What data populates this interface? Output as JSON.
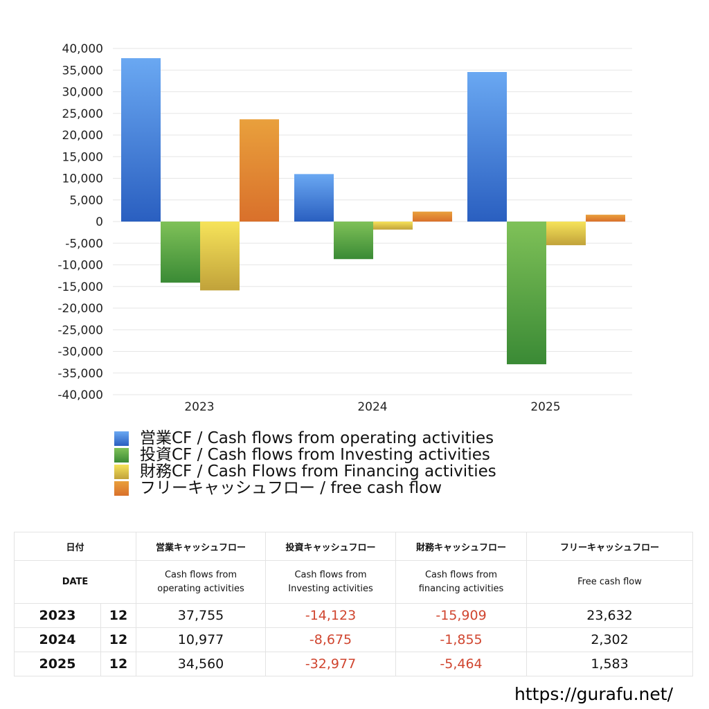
{
  "chart_data": {
    "type": "bar",
    "categories": [
      "2023",
      "2024",
      "2025"
    ],
    "ylim": [
      -40000,
      40000
    ],
    "yticks": [
      40000,
      35000,
      30000,
      25000,
      20000,
      15000,
      10000,
      5000,
      0,
      -5000,
      -10000,
      -15000,
      -20000,
      -25000,
      -30000,
      -35000,
      -40000
    ],
    "ytick_labels": [
      "40,000",
      "35,000",
      "30,000",
      "25,000",
      "20,000",
      "15,000",
      "10,000",
      "5,000",
      "0",
      "-5,000",
      "-10,000",
      "-15,000",
      "-20,000",
      "-25,000",
      "-30,000",
      "-35,000",
      "-40,000"
    ],
    "grid": true,
    "legend_position": "bottom",
    "series": [
      {
        "name": "営業CF / Cash flows from operating activities",
        "values": [
          37755,
          10977,
          34560
        ],
        "color_top": "#6aa8f2",
        "color_bottom": "#2a5fc0"
      },
      {
        "name": "投資CF / Cash flows from Investing activities",
        "values": [
          -14123,
          -8675,
          -32977
        ],
        "color_top": "#7fc158",
        "color_bottom": "#3a8a35"
      },
      {
        "name": "財務CF / Cash Flows from Financing activities",
        "values": [
          -15909,
          -1855,
          -5464
        ],
        "color_top": "#f6e35a",
        "color_bottom": "#c1a23a"
      },
      {
        "name": "フリーキャッシュフロー / free cash flow",
        "values": [
          23632,
          2302,
          1583
        ],
        "color_top": "#e9a03c",
        "color_bottom": "#d9702b"
      }
    ]
  },
  "table": {
    "header_jp": {
      "date": "日付",
      "operating": "営業キャッシュフロー",
      "investing": "投資キャッシュフロー",
      "financing": "財務キャッシュフロー",
      "free": "フリーキャッシュフロー"
    },
    "header_en": {
      "date": "DATE",
      "operating_1": "Cash flows from",
      "operating_2": "operating activities",
      "investing_1": "Cash flows from",
      "investing_2": "Investing activities",
      "financing_1": "Cash flows from",
      "financing_2": "financing activities",
      "free": "Free cash flow"
    },
    "rows": [
      {
        "year": "2023",
        "month": "12",
        "operating": "37,755",
        "investing": "-14,123",
        "financing": "-15,909",
        "free": "23,632"
      },
      {
        "year": "2024",
        "month": "12",
        "operating": "10,977",
        "investing": "-8,675",
        "financing": "-1,855",
        "free": "2,302"
      },
      {
        "year": "2025",
        "month": "12",
        "operating": "34,560",
        "investing": "-32,977",
        "financing": "-5,464",
        "free": "1,583"
      }
    ],
    "negative_color": "#d0452f"
  },
  "source": "https://gurafu.net/"
}
